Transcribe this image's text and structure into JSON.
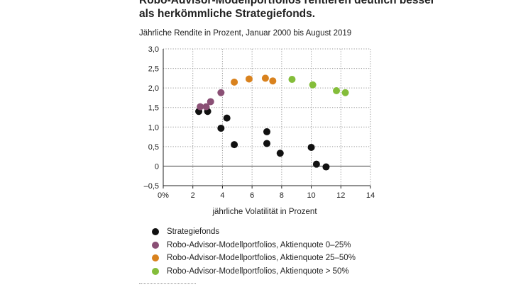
{
  "headline": {
    "line1": "Robo-Advisor-Modellportfolios rentieren deutlich besser",
    "line2": "als herkömmliche Strategiefonds."
  },
  "chart_data": {
    "type": "scatter",
    "title": "Jährliche Rendite in Prozent,  Januar 2000 bis August 2019",
    "xlabel": "jährliche Volatilität in Prozent",
    "ylabel": "",
    "xlim": [
      0,
      14
    ],
    "ylim": [
      -0.5,
      3.0
    ],
    "x_ticks": [
      0,
      2,
      4,
      6,
      8,
      10,
      12,
      14
    ],
    "x_tick_labels": [
      "0%",
      "2",
      "4",
      "6",
      "8",
      "10",
      "12",
      "14"
    ],
    "y_ticks": [
      3.0,
      2.5,
      2.0,
      1.5,
      1.0,
      0.5,
      0,
      -0.5
    ],
    "y_tick_labels": [
      "3,0",
      "2,5",
      "2,0",
      "1,5",
      "1,0",
      "0,5",
      "0",
      "–0,5"
    ],
    "grid": "dotted",
    "legend_position": "bottom",
    "series": [
      {
        "name": "Strategiefonds",
        "color": "#111111",
        "points": [
          {
            "x": 2.4,
            "y": 1.4
          },
          {
            "x": 3.0,
            "y": 1.4
          },
          {
            "x": 4.3,
            "y": 1.23
          },
          {
            "x": 3.9,
            "y": 0.97
          },
          {
            "x": 4.8,
            "y": 0.55
          },
          {
            "x": 7.0,
            "y": 0.88
          },
          {
            "x": 7.0,
            "y": 0.58
          },
          {
            "x": 7.9,
            "y": 0.33
          },
          {
            "x": 10.0,
            "y": 0.48
          },
          {
            "x": 10.35,
            "y": 0.05
          },
          {
            "x": 11.0,
            "y": -0.02
          }
        ]
      },
      {
        "name": "Robo-Advisor-Modellportfolios, Aktienquote 0–25%",
        "color": "#8a4f75",
        "points": [
          {
            "x": 2.5,
            "y": 1.52
          },
          {
            "x": 2.9,
            "y": 1.52
          },
          {
            "x": 3.2,
            "y": 1.65
          },
          {
            "x": 3.9,
            "y": 1.88
          }
        ]
      },
      {
        "name": "Robo-Advisor-Modellportfolios, Aktienquote 25–50%",
        "color": "#d9821e",
        "points": [
          {
            "x": 4.8,
            "y": 2.15
          },
          {
            "x": 5.8,
            "y": 2.23
          },
          {
            "x": 6.9,
            "y": 2.25
          },
          {
            "x": 7.4,
            "y": 2.18
          }
        ]
      },
      {
        "name": "Robo-Advisor-Modellportfolios, Aktienquote > 50%",
        "color": "#84bd3a",
        "points": [
          {
            "x": 8.7,
            "y": 2.22
          },
          {
            "x": 10.1,
            "y": 2.08
          },
          {
            "x": 11.7,
            "y": 1.93
          },
          {
            "x": 12.3,
            "y": 1.88
          }
        ]
      }
    ]
  }
}
